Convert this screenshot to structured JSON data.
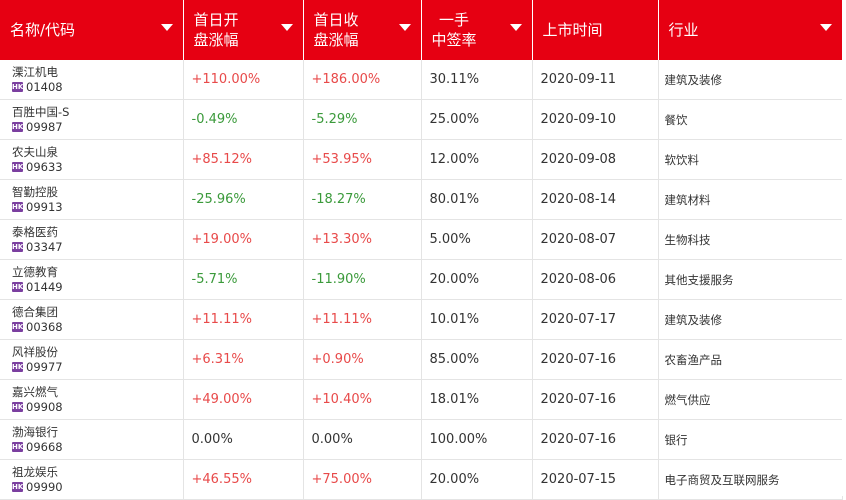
{
  "columns": [
    {
      "label": "名称/代码",
      "label2": ""
    },
    {
      "label": "首日开",
      "label2": "盘涨幅"
    },
    {
      "label": "首日收",
      "label2": "盘涨幅"
    },
    {
      "label": "一手",
      "label2": "中签率"
    },
    {
      "label": "上市时间",
      "label2": ""
    },
    {
      "label": "行业",
      "label2": ""
    }
  ],
  "market_badge": "HK",
  "rows": [
    {
      "name": "溧江机电",
      "code": "01408",
      "open": "+110.00%",
      "open_dir": "up",
      "close": "+186.00%",
      "close_dir": "up",
      "rate": "30.11%",
      "date": "2020-09-11",
      "industry": "建筑及装修"
    },
    {
      "name": "百胜中国-S",
      "code": "09987",
      "open": "-0.49%",
      "open_dir": "down",
      "close": "-5.29%",
      "close_dir": "down",
      "rate": "25.00%",
      "date": "2020-09-10",
      "industry": "餐饮"
    },
    {
      "name": "农夫山泉",
      "code": "09633",
      "open": "+85.12%",
      "open_dir": "up",
      "close": "+53.95%",
      "close_dir": "up",
      "rate": "12.00%",
      "date": "2020-09-08",
      "industry": "软饮料"
    },
    {
      "name": "智勤控股",
      "code": "09913",
      "open": "-25.96%",
      "open_dir": "down",
      "close": "-18.27%",
      "close_dir": "down",
      "rate": "80.01%",
      "date": "2020-08-14",
      "industry": "建筑材料"
    },
    {
      "name": "泰格医药",
      "code": "03347",
      "open": "+19.00%",
      "open_dir": "up",
      "close": "+13.30%",
      "close_dir": "up",
      "rate": "5.00%",
      "date": "2020-08-07",
      "industry": "生物科技"
    },
    {
      "name": "立德教育",
      "code": "01449",
      "open": "-5.71%",
      "open_dir": "down",
      "close": "-11.90%",
      "close_dir": "down",
      "rate": "20.00%",
      "date": "2020-08-06",
      "industry": "其他支援服务"
    },
    {
      "name": "德合集团",
      "code": "00368",
      "open": "+11.11%",
      "open_dir": "up",
      "close": "+11.11%",
      "close_dir": "up",
      "rate": "10.01%",
      "date": "2020-07-17",
      "industry": "建筑及装修"
    },
    {
      "name": "风祥股份",
      "code": "09977",
      "open": "+6.31%",
      "open_dir": "up",
      "close": "+0.90%",
      "close_dir": "up",
      "rate": "85.00%",
      "date": "2020-07-16",
      "industry": "农畜渔产品"
    },
    {
      "name": "嘉兴燃气",
      "code": "09908",
      "open": "+49.00%",
      "open_dir": "up",
      "close": "+10.40%",
      "close_dir": "up",
      "rate": "18.01%",
      "date": "2020-07-16",
      "industry": "燃气供应"
    },
    {
      "name": "渤海银行",
      "code": "09668",
      "open": "0.00%",
      "open_dir": "flat",
      "close": "0.00%",
      "close_dir": "flat",
      "rate": "100.00%",
      "date": "2020-07-16",
      "industry": "银行"
    },
    {
      "name": "祖龙娱乐",
      "code": "09990",
      "open": "+46.55%",
      "open_dir": "up",
      "close": "+75.00%",
      "close_dir": "up",
      "rate": "20.00%",
      "date": "2020-07-15",
      "industry": "电子商贸及互联网服务"
    }
  ],
  "colors": {
    "header_bg": "#e60012",
    "up": "#e84a4a",
    "down": "#3b9a3b",
    "badge": "#7b3fa0"
  }
}
